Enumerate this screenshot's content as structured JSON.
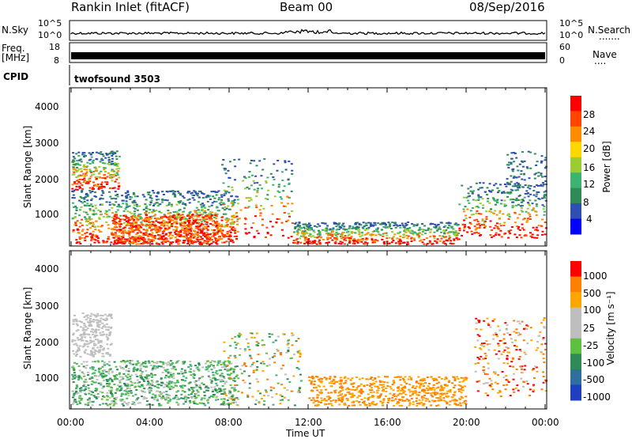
{
  "header": {
    "station": "Rankin Inlet (fitACF)",
    "beam": "Beam 00",
    "date": "08/Sep/2016"
  },
  "aux": {
    "nsky_label": "N.Sky",
    "nsearch_label": "N.Search",
    "nsearch_dots": ".......",
    "freq_label_line1": "Freq.",
    "freq_label_line2": "[MHz]",
    "nave_label": "Nave",
    "nave_dots": "....",
    "cpid_label": "CPID",
    "cpid_value": "twofsound 3503",
    "nsky_ticks": [
      "10^5",
      "10^0"
    ],
    "nsearch_ticks": [
      "10^5",
      "10^0"
    ],
    "freq_ticks": [
      "18",
      "8"
    ],
    "nave_ticks": [
      "60",
      "0"
    ]
  },
  "chart_data": [
    {
      "type": "heatmap",
      "name": "power",
      "ylabel": "Slant Range [km]",
      "yticks": [
        "4000",
        "3000",
        "2000",
        "1000"
      ],
      "ylim": [
        180,
        4500
      ],
      "colorbar_label": "Power [dB]",
      "colorbar_ticks": [
        "28",
        "24",
        "20",
        "16",
        "12",
        "8",
        "4"
      ],
      "colorbar_colors": [
        "#0000ff",
        "#2f4fb0",
        "#2e8b57",
        "#3cb371",
        "#9acd32",
        "#ffd700",
        "#ff8c00",
        "#ff4500",
        "#ff0000"
      ]
    },
    {
      "type": "heatmap",
      "name": "velocity",
      "ylabel": "Slant Range [km]",
      "yticks": [
        "4000",
        "3000",
        "2000",
        "1000"
      ],
      "ylim": [
        180,
        4500
      ],
      "colorbar_label": "Velocity [m s⁻¹]",
      "colorbar_ticks": [
        "1000",
        "500",
        "100",
        "25",
        "-25",
        "-100",
        "-500",
        "-1000"
      ],
      "colorbar_colors": [
        "#1f3fbf",
        "#2e6fa0",
        "#2e8b57",
        "#5fc040",
        "#bebebe",
        "#bebebe",
        "#ffa500",
        "#ff7f00",
        "#ff0000"
      ]
    }
  ],
  "time_axis": {
    "label": "Time UT",
    "ticks": [
      "00:00",
      "04:00",
      "08:00",
      "12:00",
      "16:00",
      "20:00",
      "00:00"
    ]
  }
}
